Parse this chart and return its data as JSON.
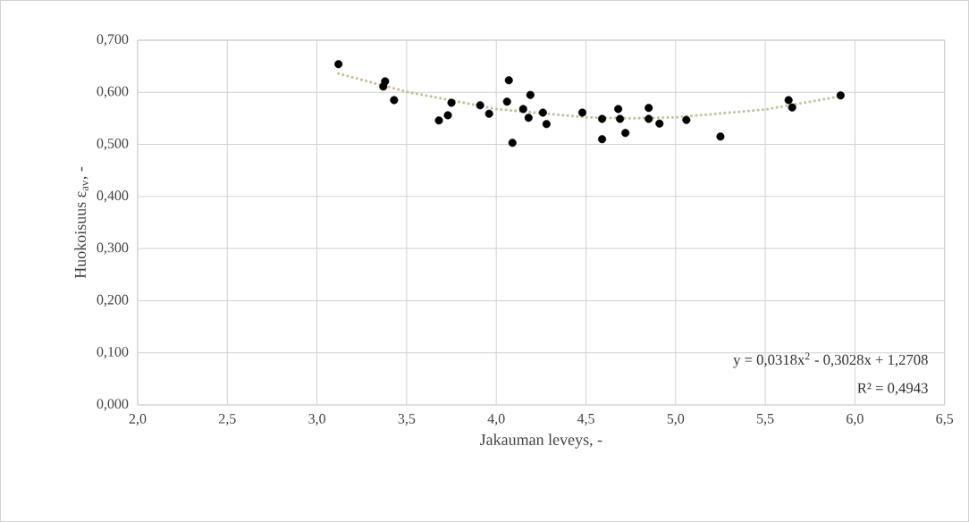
{
  "chart_data": {
    "type": "scatter",
    "xlabel": "Jakauman leveys, -",
    "ylabel": "Huokoisuus ε$_{av}$, -",
    "xlim": [
      2.0,
      6.5
    ],
    "ylim": [
      0,
      0.7
    ],
    "xticks": [
      {
        "value": 2.0,
        "label": "2,0"
      },
      {
        "value": 2.5,
        "label": "2,5"
      },
      {
        "value": 3.0,
        "label": "3,0"
      },
      {
        "value": 3.5,
        "label": "3,5"
      },
      {
        "value": 4.0,
        "label": "4,0"
      },
      {
        "value": 4.5,
        "label": "4,5"
      },
      {
        "value": 5.0,
        "label": "5,0"
      },
      {
        "value": 5.5,
        "label": "5,5"
      },
      {
        "value": 6.0,
        "label": "6,0"
      },
      {
        "value": 6.5,
        "label": "6,5"
      }
    ],
    "yticks": [
      {
        "value": 0,
        "label": "0,000"
      },
      {
        "value": 0.1,
        "label": "0,100"
      },
      {
        "value": 0.2,
        "label": "0,200"
      },
      {
        "value": 0.3,
        "label": "0,300"
      },
      {
        "value": 0.4,
        "label": "0,400"
      },
      {
        "value": 0.5,
        "label": "0,500"
      },
      {
        "value": 0.6,
        "label": "0,600"
      },
      {
        "value": 0.7,
        "label": "0,700"
      }
    ],
    "grid": true,
    "series": [
      {
        "marker": "circle",
        "color": "#000000",
        "x": [
          3.12,
          3.38,
          3.37,
          3.43,
          3.68,
          3.73,
          3.75,
          3.91,
          3.96,
          4.07,
          4.06,
          4.09,
          4.15,
          4.18,
          4.19,
          4.26,
          4.28,
          4.48,
          4.59,
          4.59,
          4.68,
          4.69,
          4.72,
          4.85,
          4.85,
          4.91,
          5.06,
          5.25,
          5.63,
          5.65,
          5.92
        ],
        "values": [
          0.654,
          0.621,
          0.611,
          0.585,
          0.546,
          0.556,
          0.58,
          0.575,
          0.559,
          0.623,
          0.582,
          0.503,
          0.568,
          0.551,
          0.595,
          0.561,
          0.539,
          0.561,
          0.549,
          0.51,
          0.568,
          0.549,
          0.522,
          0.57,
          0.549,
          0.54,
          0.547,
          0.515,
          0.585,
          0.571,
          0.594
        ]
      },
      {
        "type": "line",
        "color": "#c9bf99",
        "line_style": "dotted",
        "x": [
          3.12,
          3.5,
          4.0,
          4.5,
          4.76,
          5.0,
          5.5,
          5.93
        ],
        "values": [
          0.636,
          0.601,
          0.568,
          0.552,
          0.55,
          0.552,
          0.567,
          0.593
        ]
      }
    ],
    "annotations": [
      "y = 0,0318x$^{2}$ - 0,3028x + 1,2708",
      "R² = 0,4943"
    ]
  }
}
